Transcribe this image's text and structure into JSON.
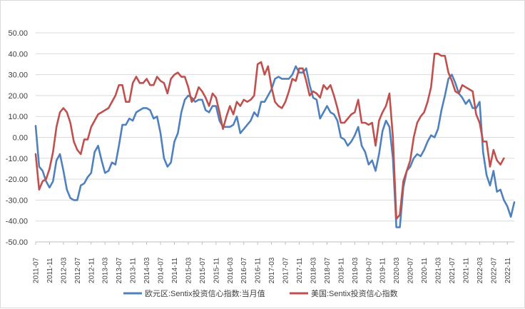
{
  "chart_data": {
    "type": "line",
    "title": "",
    "xlabel": "",
    "ylabel": "",
    "ylim": [
      -50,
      50
    ],
    "y_ticks": [
      "50.00",
      "40.00",
      "30.00",
      "20.00",
      "10.00",
      "0.00",
      "-10.00",
      "-20.00",
      "-30.00",
      "-40.00",
      "-50.00"
    ],
    "x_ticks": [
      "2011-07",
      "2011-11",
      "2012-03",
      "2012-07",
      "2012-11",
      "2013-03",
      "2013-07",
      "2013-11",
      "2014-03",
      "2014-07",
      "2014-11",
      "2015-03",
      "2015-07",
      "2015-11",
      "2016-03",
      "2016-07",
      "2016-11",
      "2017-03",
      "2017-07",
      "2017-11",
      "2018-03",
      "2018-07",
      "2018-11",
      "2019-03",
      "2019-07",
      "2019-11",
      "2020-03",
      "2020-07",
      "2020-11",
      "2021-03",
      "2021-07",
      "2021-11",
      "2022-03",
      "2022-07",
      "2022-11"
    ],
    "grid": "horizontal",
    "legend_position": "bottom",
    "start_month": "2011-07",
    "series": [
      {
        "name": "欧元区:Sentix投资信心指数:当月值",
        "color": "#4f81bd",
        "values": [
          5.5,
          -14,
          -16,
          -21,
          -24,
          -21,
          -11,
          -8,
          -16,
          -25,
          -29,
          -30,
          -30,
          -23,
          -22,
          -19,
          -17,
          -7,
          -4,
          -11,
          -17,
          -16,
          -12,
          -13,
          -4,
          6,
          6,
          9,
          8,
          12,
          13,
          14,
          14,
          13,
          9,
          10,
          2,
          -10,
          -14,
          -12,
          -2,
          2,
          12,
          18,
          20,
          19,
          17,
          18,
          18,
          13,
          12,
          15,
          15,
          8,
          5,
          5,
          5,
          6,
          10,
          2,
          4,
          6,
          8,
          12,
          10,
          17,
          17,
          20,
          23,
          28,
          29,
          28,
          28,
          28,
          30,
          34,
          31,
          31,
          33,
          25,
          19,
          18,
          9,
          12,
          15,
          12,
          11,
          8,
          0,
          -1,
          -4,
          -2,
          1,
          5,
          -4,
          -7,
          -13,
          -11,
          -16,
          -8,
          3,
          8,
          5,
          -10,
          -43,
          -43,
          -24,
          -16,
          -14,
          -10,
          -8,
          -9,
          -6,
          -2,
          1,
          0,
          4,
          13,
          20,
          28,
          30,
          26,
          21,
          19,
          16,
          18,
          14,
          14,
          17,
          -7,
          -18,
          -23,
          -16,
          -26,
          -25,
          -30,
          -33,
          -38,
          -31
        ]
      },
      {
        "name": "美国:Sentix投资信心指数",
        "color": "#c0504d",
        "values": [
          -8,
          -25,
          -21,
          -20,
          -15,
          -7,
          5,
          12,
          14,
          12,
          7,
          -2,
          -6,
          -8,
          -1,
          -1,
          5,
          8,
          11,
          12,
          13,
          14,
          17,
          20,
          25,
          25,
          17,
          17,
          26,
          29,
          26,
          26,
          28,
          25,
          25,
          29,
          27,
          26,
          21,
          28,
          30,
          31,
          29,
          29,
          24,
          17,
          19,
          24,
          22,
          19,
          15,
          21,
          19,
          12,
          4,
          10,
          15,
          11,
          17,
          15,
          18,
          17,
          18,
          20,
          35,
          36,
          30,
          34,
          24,
          17,
          15,
          14,
          17,
          22,
          28,
          27,
          33,
          33,
          27,
          20,
          22,
          21,
          19,
          25,
          23,
          25,
          20,
          14,
          7,
          7,
          9,
          11,
          12,
          18,
          7,
          7,
          6,
          7,
          -4,
          8,
          12,
          15,
          21,
          0,
          -39,
          -37,
          -21,
          -16,
          -11,
          0,
          7,
          10,
          12,
          17,
          24,
          40,
          40,
          39,
          39,
          31,
          27,
          22,
          21,
          25,
          24,
          23,
          22,
          11,
          7,
          -2,
          -2,
          -14,
          -6,
          -11,
          -13,
          -10
        ]
      }
    ]
  }
}
